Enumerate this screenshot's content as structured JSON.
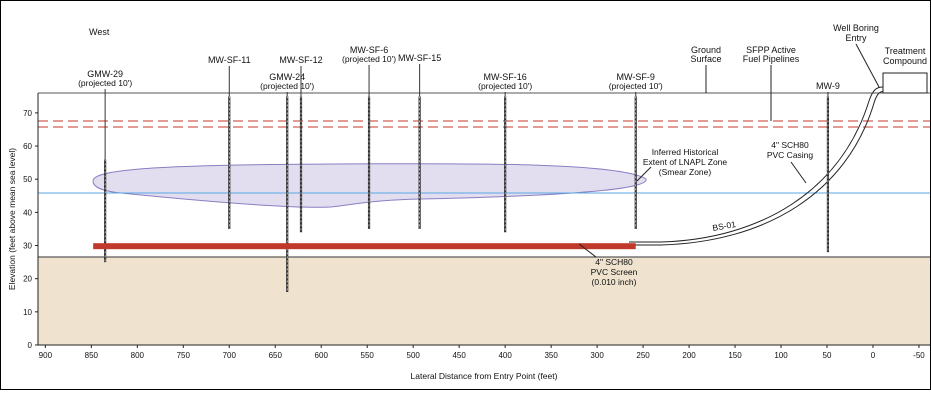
{
  "direction_label": "West",
  "y_axis_label": "Elevation (feet above mean sea level)",
  "x_axis_label": "Lateral Distance from Entry Point (feet)",
  "x_ticks": [
    900,
    850,
    800,
    750,
    700,
    650,
    600,
    550,
    500,
    450,
    400,
    350,
    300,
    250,
    200,
    150,
    100,
    50,
    0,
    -50
  ],
  "y_ticks": [
    0,
    10,
    20,
    30,
    40,
    50,
    60,
    70
  ],
  "x_range": [
    908,
    -62
  ],
  "y_range": [
    0,
    76
  ],
  "ground_surface_elev": 75,
  "water_table_elev": 45,
  "soil_top_elev": 26,
  "fuel_pipeline_elevs": [
    66,
    65
  ],
  "screen": {
    "x_start": 848,
    "x_end": 258,
    "elev": 29.8
  },
  "colors": {
    "soil": "#efe3cf",
    "lnapl_fill": "#e2ddef",
    "lnapl_stroke": "#8a7fc3",
    "water": "#5aa9e6",
    "pipeline": "#c0392b",
    "screen": "#c0392b"
  },
  "wells": [
    {
      "name": "GMW-29",
      "note": "(projected 10')",
      "x": 835,
      "top": 56,
      "bottom": 25
    },
    {
      "name": "MW-SF-11",
      "note": "",
      "x": 700,
      "top": 75,
      "bottom": 35
    },
    {
      "name": "GMW-24",
      "note": "(projected 10')",
      "x": 637,
      "top": 75,
      "bottom": 16
    },
    {
      "name": "MW-SF-12",
      "note": "",
      "x": 622,
      "top": 75,
      "bottom": 34
    },
    {
      "name": "MW-SF-6",
      "note": "(projected 10')",
      "x": 548,
      "top": 75,
      "bottom": 35
    },
    {
      "name": "MW-SF-15",
      "note": "",
      "x": 493,
      "top": 75,
      "bottom": 35
    },
    {
      "name": "MW-SF-16",
      "note": "(projected 10')",
      "x": 400,
      "top": 75,
      "bottom": 34
    },
    {
      "name": "MW-SF-9",
      "note": "(projected 10')",
      "x": 258,
      "top": 75,
      "bottom": 35
    },
    {
      "name": "MW-9",
      "note": "",
      "x": 49,
      "top": 75,
      "bottom": 28
    }
  ],
  "labels": {
    "ground_surface": [
      "Ground",
      "Surface"
    ],
    "pipelines": [
      "SFPP Active",
      "Fuel Pipelines"
    ],
    "well_entry": [
      "Well Boring",
      "Entry"
    ],
    "treatment": [
      "Treatment",
      "Compound"
    ],
    "lnapl": [
      "Inferred Historical",
      "Extent of LNAPL Zone",
      "(Smear Zone)"
    ],
    "casing": [
      "4\" SCH80",
      "PVC Casing"
    ],
    "screen_label": [
      "4\" SCH80",
      "PVC Screen",
      "(0.010 inch)"
    ],
    "boring_id": "BS-01"
  }
}
